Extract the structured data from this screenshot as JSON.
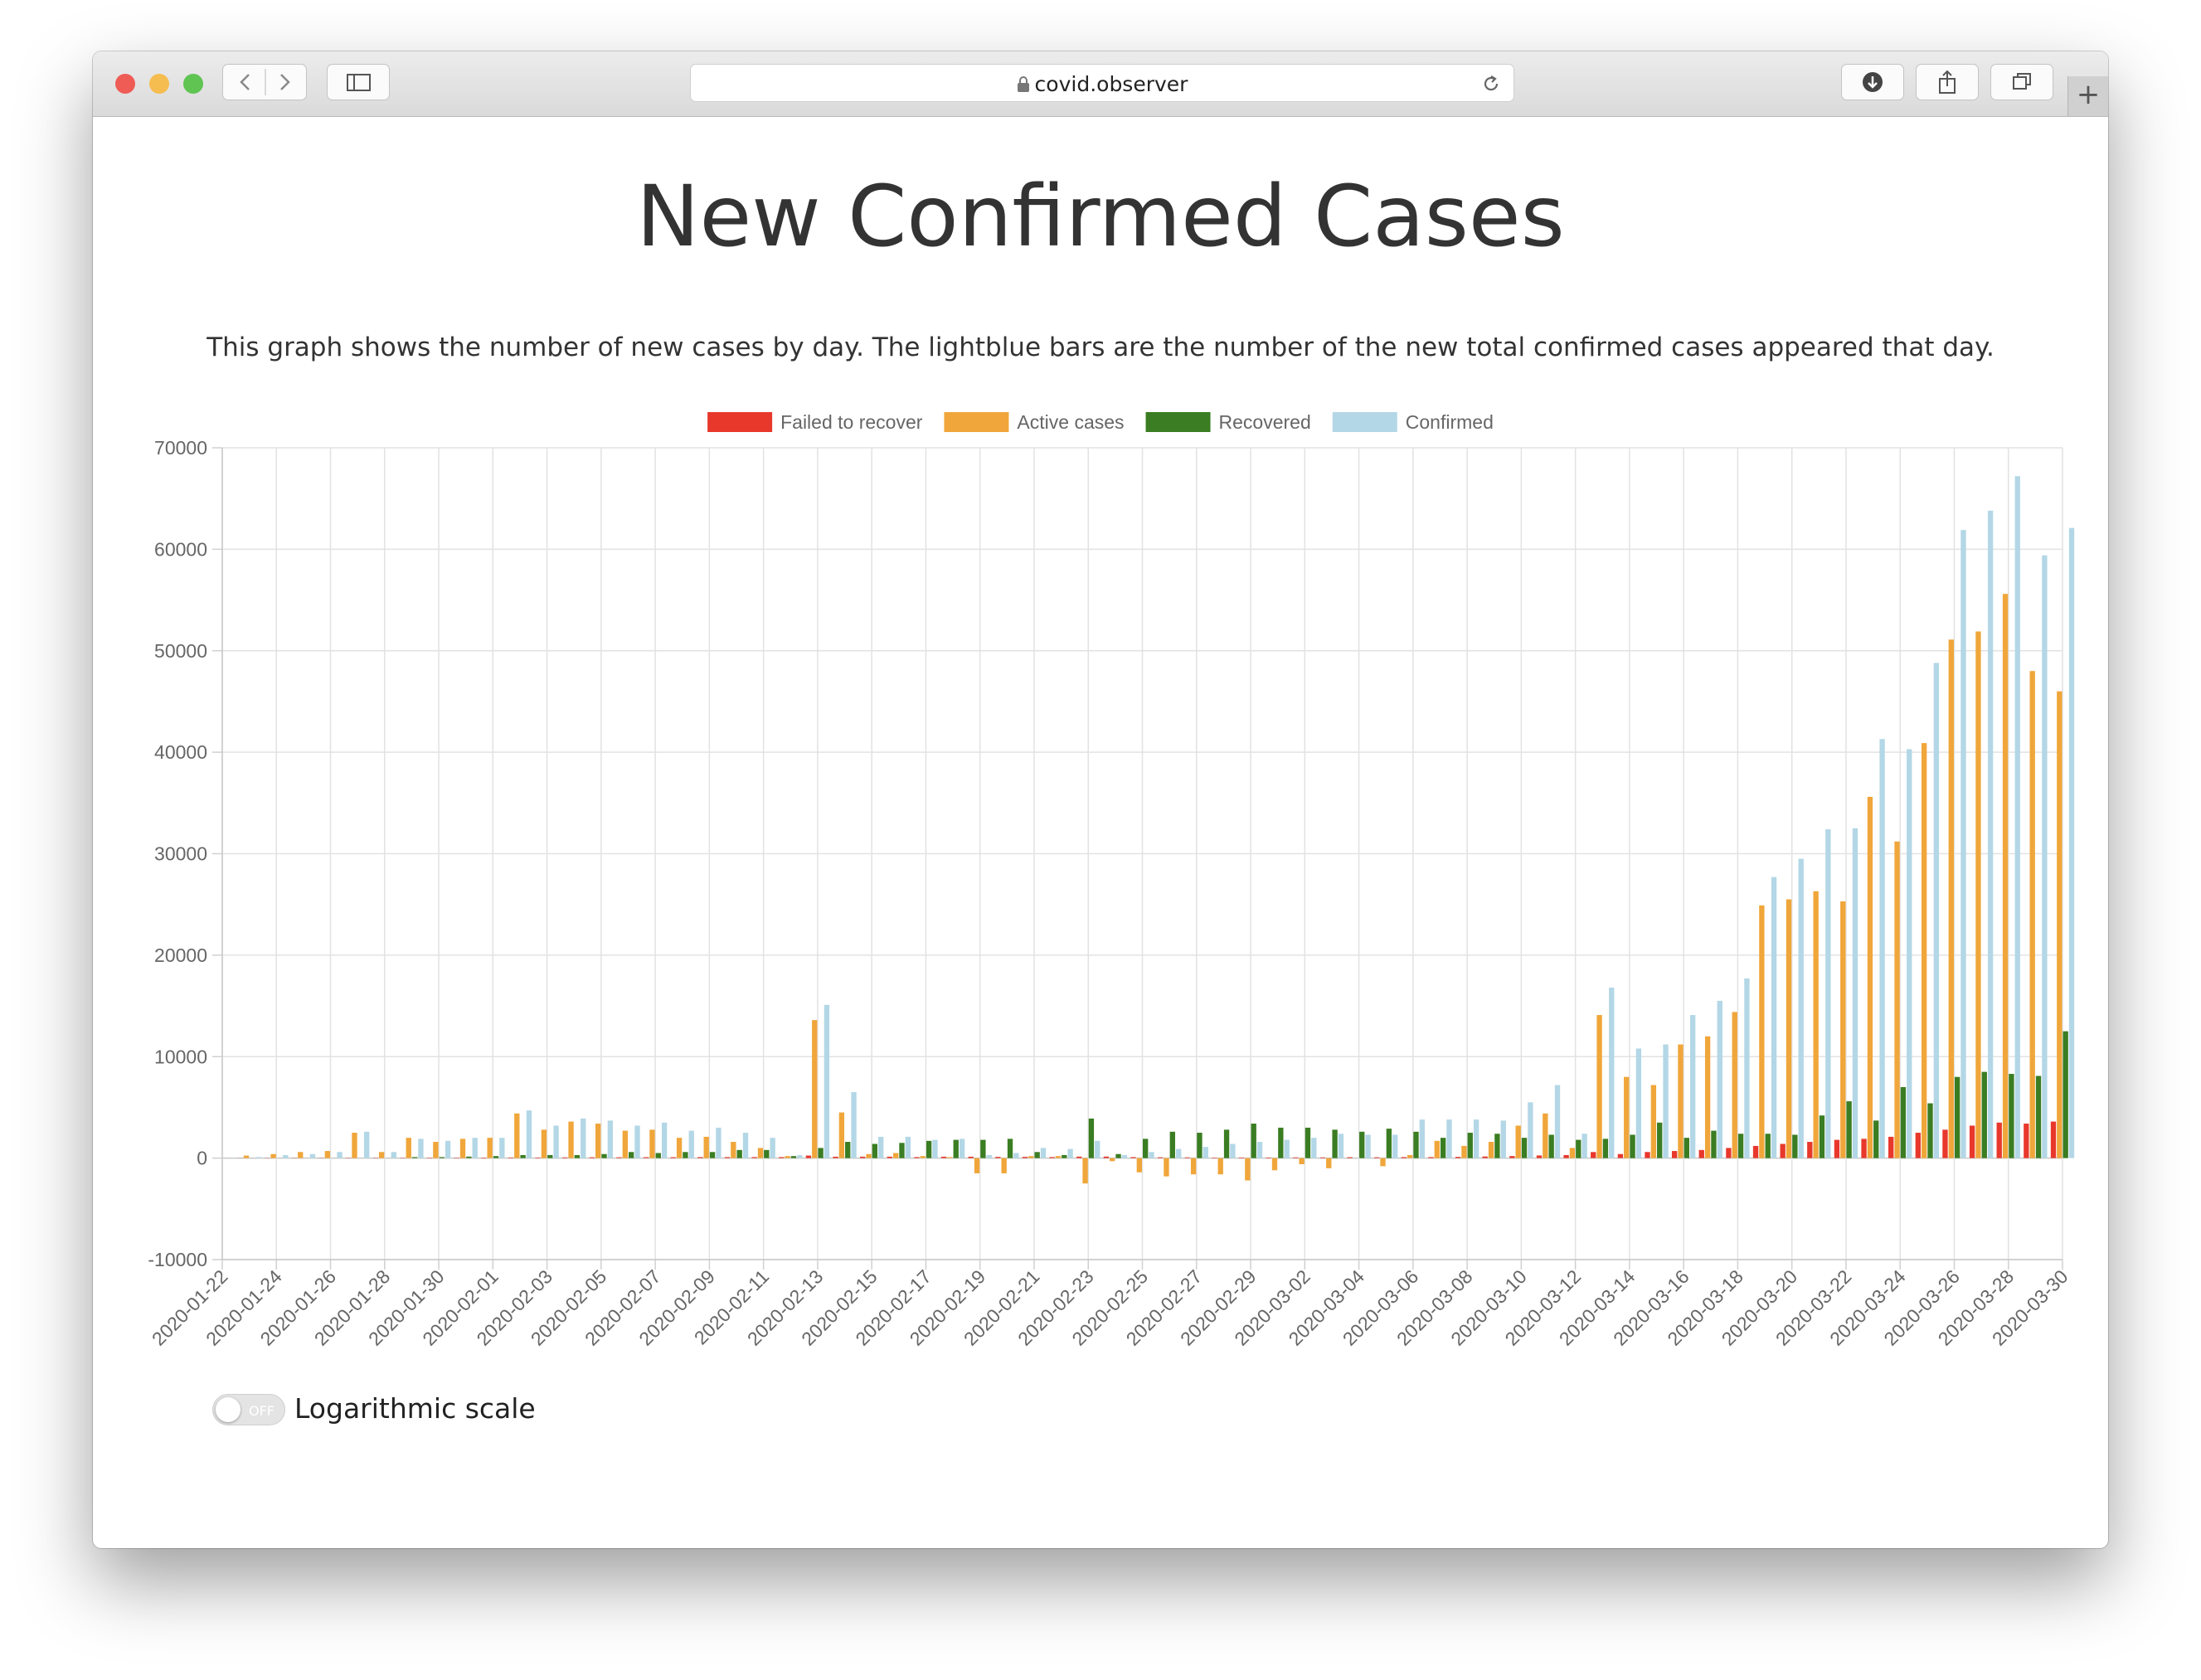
{
  "browser": {
    "url": "covid.observer",
    "newtab_glyph": "+",
    "colors": {
      "close": "#ee5c55",
      "minimize": "#f5bd4f",
      "zoom": "#5fc452"
    },
    "icons": [
      "back-icon",
      "forward-icon",
      "sidebar-icon",
      "lock-icon",
      "reload-icon",
      "download-icon",
      "share-icon",
      "tabs-icon",
      "plus-icon"
    ]
  },
  "page": {
    "title": "New Confirmed Cases",
    "description": "This graph shows the number of new cases by day. The lightblue bars are the number of the new total confirmed cases appeared that day."
  },
  "toggle": {
    "state": "OFF",
    "label": "Logarithmic scale"
  },
  "chart_data": {
    "type": "bar",
    "legend_position": "top",
    "grid": true,
    "ylim": [
      -10000,
      70000
    ],
    "y_ticks": [
      70000,
      60000,
      50000,
      40000,
      30000,
      20000,
      10000,
      0,
      -10000
    ],
    "x_tick_labels": [
      "2020-01-22",
      "2020-01-24",
      "2020-01-26",
      "2020-01-28",
      "2020-01-30",
      "2020-02-01",
      "2020-02-03",
      "2020-02-05",
      "2020-02-07",
      "2020-02-09",
      "2020-02-11",
      "2020-02-13",
      "2020-02-15",
      "2020-02-17",
      "2020-02-19",
      "2020-02-21",
      "2020-02-23",
      "2020-02-25",
      "2020-02-27",
      "2020-02-29",
      "2020-03-02",
      "2020-03-04",
      "2020-03-06",
      "2020-03-08",
      "2020-03-10",
      "2020-03-12",
      "2020-03-14",
      "2020-03-16",
      "2020-03-18",
      "2020-03-20",
      "2020-03-22",
      "2020-03-24",
      "2020-03-26",
      "2020-03-28",
      "2020-03-30"
    ],
    "categories": [
      "2020-01-22",
      "2020-01-23",
      "2020-01-24",
      "2020-01-25",
      "2020-01-26",
      "2020-01-27",
      "2020-01-28",
      "2020-01-29",
      "2020-01-30",
      "2020-01-31",
      "2020-02-01",
      "2020-02-02",
      "2020-02-03",
      "2020-02-04",
      "2020-02-05",
      "2020-02-06",
      "2020-02-07",
      "2020-02-08",
      "2020-02-09",
      "2020-02-10",
      "2020-02-11",
      "2020-02-12",
      "2020-02-13",
      "2020-02-14",
      "2020-02-15",
      "2020-02-16",
      "2020-02-17",
      "2020-02-18",
      "2020-02-19",
      "2020-02-20",
      "2020-02-21",
      "2020-02-22",
      "2020-02-23",
      "2020-02-24",
      "2020-02-25",
      "2020-02-26",
      "2020-02-27",
      "2020-02-28",
      "2020-02-29",
      "2020-03-01",
      "2020-03-02",
      "2020-03-03",
      "2020-03-04",
      "2020-03-05",
      "2020-03-06",
      "2020-03-07",
      "2020-03-08",
      "2020-03-09",
      "2020-03-10",
      "2020-03-11",
      "2020-03-12",
      "2020-03-13",
      "2020-03-14",
      "2020-03-15",
      "2020-03-16",
      "2020-03-17",
      "2020-03-18",
      "2020-03-19",
      "2020-03-20",
      "2020-03-21",
      "2020-03-22",
      "2020-03-23",
      "2020-03-24",
      "2020-03-25",
      "2020-03-26",
      "2020-03-27",
      "2020-03-28",
      "2020-03-29",
      "2020-03-30"
    ],
    "series": [
      {
        "name": "Failed to recover",
        "color": "#e8382c",
        "values": [
          0,
          10,
          20,
          20,
          20,
          30,
          30,
          30,
          40,
          40,
          50,
          60,
          60,
          70,
          80,
          80,
          90,
          90,
          100,
          100,
          100,
          100,
          250,
          140,
          140,
          140,
          100,
          140,
          140,
          120,
          120,
          100,
          150,
          150,
          100,
          80,
          70,
          50,
          60,
          60,
          70,
          70,
          90,
          80,
          100,
          100,
          120,
          160,
          200,
          260,
          300,
          600,
          400,
          600,
          700,
          800,
          1000,
          1200,
          1400,
          1600,
          1800,
          1900,
          2100,
          2500,
          2800,
          3200,
          3500,
          3400,
          3600
        ]
      },
      {
        "name": "Active cases",
        "color": "#f0a63a",
        "values": [
          0,
          250,
          400,
          600,
          700,
          2500,
          600,
          2000,
          1600,
          1900,
          2000,
          4400,
          2800,
          3600,
          3400,
          2700,
          2800,
          2000,
          2100,
          1600,
          1000,
          200,
          13600,
          4500,
          400,
          500,
          200,
          100,
          -1500,
          -1500,
          200,
          200,
          -2500,
          -300,
          -1400,
          -1800,
          -1600,
          -1600,
          -2200,
          -1200,
          -600,
          -1000,
          0,
          -800,
          300,
          1700,
          1200,
          1600,
          3200,
          4400,
          1000,
          14100,
          8000,
          7200,
          11200,
          12000,
          14400,
          24900,
          25500,
          26300,
          25300,
          35600,
          31200,
          40900,
          51100,
          51900,
          55600,
          48000,
          46000
        ]
      },
      {
        "name": "Recovered",
        "color": "#3a7d22",
        "values": [
          0,
          0,
          0,
          0,
          0,
          0,
          0,
          100,
          100,
          150,
          200,
          300,
          300,
          300,
          400,
          600,
          500,
          600,
          600,
          800,
          800,
          200,
          1000,
          1600,
          1400,
          1500,
          1700,
          1800,
          1800,
          1900,
          600,
          300,
          3900,
          400,
          1900,
          2600,
          2500,
          2800,
          3400,
          3000,
          3000,
          2800,
          2600,
          2900,
          2600,
          2000,
          2500,
          2400,
          2000,
          2300,
          1800,
          1900,
          2300,
          3500,
          2000,
          2700,
          2400,
          2400,
          2300,
          4200,
          5600,
          3700,
          7000,
          5400,
          8000,
          8500,
          8300,
          8100,
          12500
        ]
      },
      {
        "name": "Confirmed",
        "color": "#b3d7e6",
        "values": [
          0,
          100,
          300,
          400,
          600,
          2600,
          600,
          1900,
          1700,
          2000,
          2000,
          4700,
          3200,
          3900,
          3700,
          3200,
          3500,
          2700,
          3000,
          2500,
          2000,
          300,
          15100,
          6500,
          2100,
          2100,
          1800,
          1900,
          300,
          500,
          1000,
          900,
          1700,
          300,
          600,
          900,
          1100,
          1400,
          1600,
          1800,
          2000,
          2400,
          2300,
          2300,
          3800,
          3800,
          3800,
          3700,
          5500,
          7200,
          2400,
          16800,
          10800,
          11200,
          14100,
          15500,
          17700,
          27700,
          29500,
          32400,
          32500,
          41300,
          40300,
          48800,
          61900,
          63800,
          67200,
          59400,
          62100
        ]
      }
    ]
  }
}
